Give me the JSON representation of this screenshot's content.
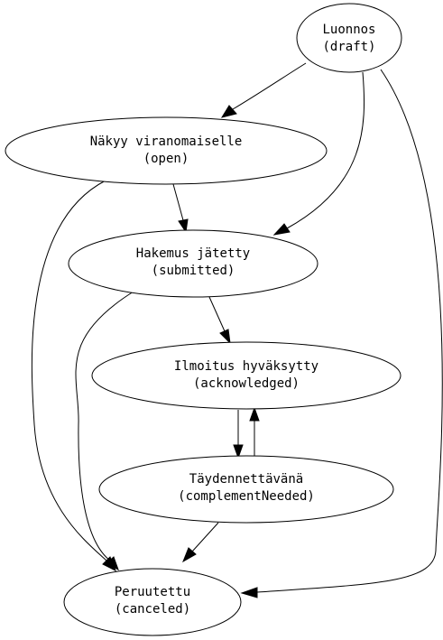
{
  "diagram": {
    "type": "state-graph",
    "nodes": [
      {
        "id": "draft",
        "title": "Luonnos",
        "subtitle": "(draft)"
      },
      {
        "id": "open",
        "title": "Näkyy viranomaiselle",
        "subtitle": "(open)"
      },
      {
        "id": "submitted",
        "title": "Hakemus jätetty",
        "subtitle": "(submitted)"
      },
      {
        "id": "acknowledged",
        "title": "Ilmoitus hyväksytty",
        "subtitle": "(acknowledged)"
      },
      {
        "id": "complementNeeded",
        "title": "Täydennettävänä",
        "subtitle": "(complementNeeded)"
      },
      {
        "id": "canceled",
        "title": "Peruutettu",
        "subtitle": "(canceled)"
      }
    ],
    "edges": [
      {
        "from": "draft",
        "to": "open"
      },
      {
        "from": "draft",
        "to": "submitted"
      },
      {
        "from": "draft",
        "to": "canceled"
      },
      {
        "from": "open",
        "to": "submitted"
      },
      {
        "from": "open",
        "to": "canceled"
      },
      {
        "from": "submitted",
        "to": "acknowledged"
      },
      {
        "from": "submitted",
        "to": "canceled"
      },
      {
        "from": "acknowledged",
        "to": "complementNeeded"
      },
      {
        "from": "complementNeeded",
        "to": "acknowledged"
      },
      {
        "from": "complementNeeded",
        "to": "canceled"
      }
    ],
    "colors": {
      "stroke": "#000000",
      "fill": "#ffffff",
      "text": "#000000"
    }
  }
}
